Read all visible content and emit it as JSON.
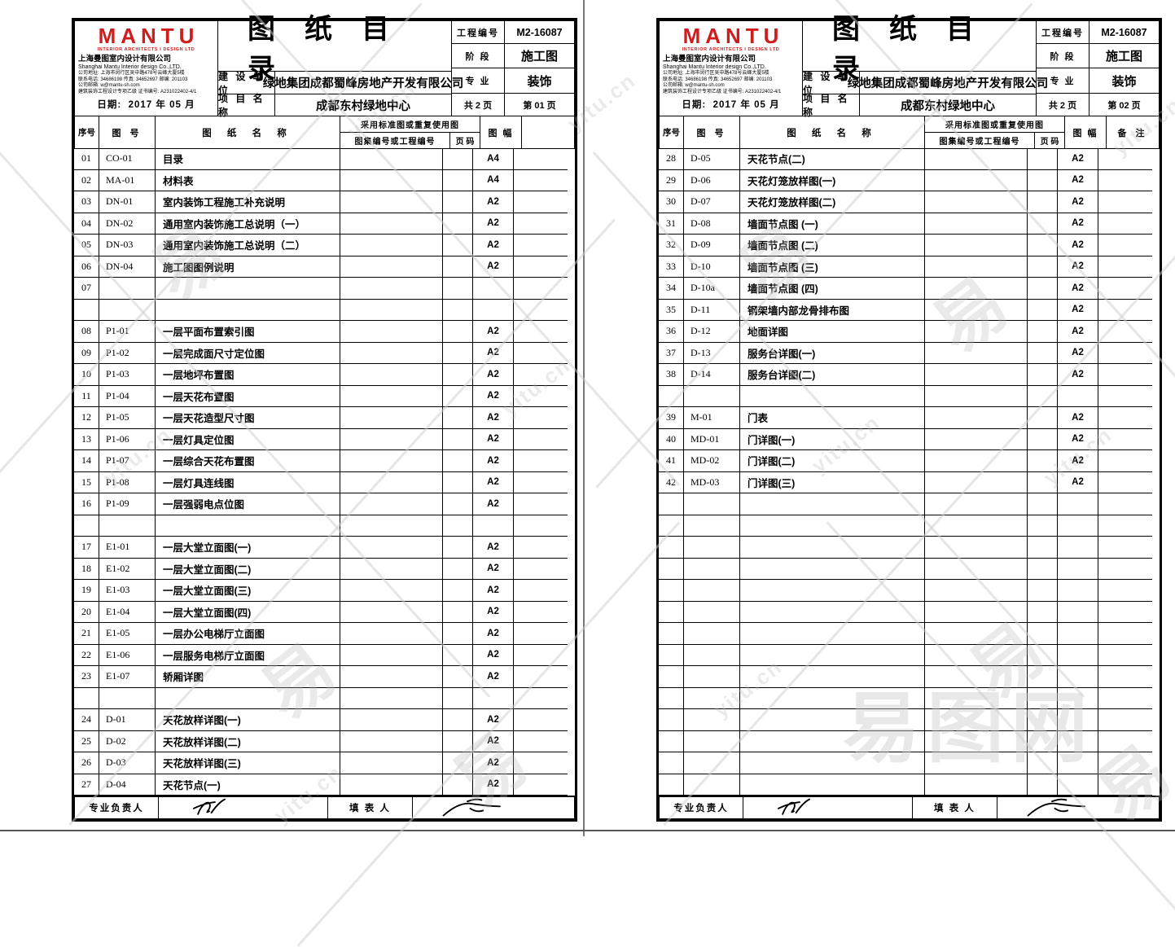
{
  "watermark": {
    "char": "易",
    "site": "yitu.cn",
    "big": "易图网"
  },
  "pages": [
    {
      "header": {
        "logo_title": "MANTU",
        "logo_subtitle": "INTERIOR ARCHITECTS I DESIGN LTD",
        "company_cn": "上海曼图室内设计有限公司",
        "company_en": "Shanghai Mantu Interior design Co.,LTD.",
        "address": "公司地址: 上海市闵行区吴中路478号云峰大厦5楼",
        "contact": "联系电话: 34686198  传真: 34652697  邮编: 201103",
        "email": "公司邮箱: w@mantu-sh.com",
        "cert": "建筑装饰工程设计专项乙级  证书编号: A231022402-4/1",
        "date_label": "日期:",
        "date_value": "2017 年 05 月",
        "sheet_title": "图纸目录",
        "client_label": "建 设 单 位",
        "client": "绿地集团成都蜀峰房地产开发有限公司",
        "project_label": "项 目 名 称",
        "project": "成都东村绿地中心",
        "job_no_label": "工程编号",
        "job_no": "M2-16087",
        "stage_label": "阶 段",
        "stage": "施工图",
        "discipline_label": "专 业",
        "discipline": "装饰",
        "pages_total": "共 2 页",
        "page_no": "第 01 页"
      },
      "table": {
        "col_seq": "序号",
        "col_no": "图 号",
        "col_name": "图 纸 名 称",
        "col_std": "采用标准图或重复使用图",
        "col_std_no": "图集编号或工程编号",
        "col_page": "页 码",
        "col_size": "图 幅",
        "col_remark": "备 注",
        "rows": [
          {
            "seq": "01",
            "no": "CO-01",
            "name": "目录",
            "size": "A4"
          },
          {
            "seq": "02",
            "no": "MA-01",
            "name": "材料表",
            "size": "A4"
          },
          {
            "seq": "03",
            "no": "DN-01",
            "name": "室内装饰工程施工补充说明",
            "size": "A2"
          },
          {
            "seq": "04",
            "no": "DN-02",
            "name": "通用室内装饰施工总说明（一）",
            "size": "A2"
          },
          {
            "seq": "05",
            "no": "DN-03",
            "name": "通用室内装饰施工总说明（二）",
            "size": "A2"
          },
          {
            "seq": "06",
            "no": "DN-04",
            "name": "施工图图例说明",
            "size": "A2"
          },
          {
            "seq": "07",
            "no": "",
            "name": "",
            "size": ""
          },
          {
            "seq": "",
            "no": "",
            "name": "",
            "size": ""
          },
          {
            "seq": "08",
            "no": "P1-01",
            "name": "一层平面布置索引图",
            "size": "A2"
          },
          {
            "seq": "09",
            "no": "P1-02",
            "name": "一层完成面尺寸定位图",
            "size": "A2"
          },
          {
            "seq": "10",
            "no": "P1-03",
            "name": "一层地坪布置图",
            "size": "A2"
          },
          {
            "seq": "11",
            "no": "P1-04",
            "name": "一层天花布置图",
            "size": "A2"
          },
          {
            "seq": "12",
            "no": "P1-05",
            "name": "一层天花造型尺寸图",
            "size": "A2"
          },
          {
            "seq": "13",
            "no": "P1-06",
            "name": "一层灯具定位图",
            "size": "A2"
          },
          {
            "seq": "14",
            "no": "P1-07",
            "name": "一层综合天花布置图",
            "size": "A2"
          },
          {
            "seq": "15",
            "no": "P1-08",
            "name": "一层灯具连线图",
            "size": "A2"
          },
          {
            "seq": "16",
            "no": "P1-09",
            "name": "一层强弱电点位图",
            "size": "A2"
          },
          {
            "seq": "",
            "no": "",
            "name": "",
            "size": ""
          },
          {
            "seq": "17",
            "no": "E1-01",
            "name": "一层大堂立面图(一)",
            "size": "A2"
          },
          {
            "seq": "18",
            "no": "E1-02",
            "name": "一层大堂立面图(二)",
            "size": "A2"
          },
          {
            "seq": "19",
            "no": "E1-03",
            "name": "一层大堂立面图(三)",
            "size": "A2"
          },
          {
            "seq": "20",
            "no": "E1-04",
            "name": "一层大堂立面图(四)",
            "size": "A2"
          },
          {
            "seq": "21",
            "no": "E1-05",
            "name": "一层办公电梯厅立面图",
            "size": "A2"
          },
          {
            "seq": "22",
            "no": "E1-06",
            "name": "一层服务电梯厅立面图",
            "size": "A2"
          },
          {
            "seq": "23",
            "no": "E1-07",
            "name": "轿厢详图",
            "size": "A2"
          },
          {
            "seq": "",
            "no": "",
            "name": "",
            "size": ""
          },
          {
            "seq": "24",
            "no": "D-01",
            "name": "天花放样详图(一)",
            "size": "A2"
          },
          {
            "seq": "25",
            "no": "D-02",
            "name": "天花放样详图(二)",
            "size": "A2"
          },
          {
            "seq": "26",
            "no": "D-03",
            "name": "天花放样详图(三)",
            "size": "A2"
          },
          {
            "seq": "27",
            "no": "D-04",
            "name": "天花节点(一)",
            "size": "A2"
          }
        ]
      },
      "footer": {
        "lead_label": "专业负责人",
        "fill_label": "填 表 人"
      }
    },
    {
      "header": {
        "logo_title": "MANTU",
        "logo_subtitle": "INTERIOR ARCHITECTS I DESIGN LTD",
        "company_cn": "上海曼图室内设计有限公司",
        "company_en": "Shanghai Mantu Interior design Co.,LTD.",
        "address": "公司地址: 上海市闵行区吴中路478号云峰大厦5楼",
        "contact": "联系电话: 34686198  传真: 34652697  邮编: 201103",
        "email": "公司邮箱: w@mantu-sh.com",
        "cert": "建筑装饰工程设计专项乙级  证书编号: A231022402-4/1",
        "date_label": "日期:",
        "date_value": "2017 年 05 月",
        "sheet_title": "图纸目录",
        "client_label": "建 设 单 位",
        "client": "绿地集团成都蜀峰房地产开发有限公司",
        "project_label": "项 目 名 称",
        "project": "成都东村绿地中心",
        "job_no_label": "工程编号",
        "job_no": "M2-16087",
        "stage_label": "阶 段",
        "stage": "施工图",
        "discipline_label": "专 业",
        "discipline": "装饰",
        "pages_total": "共 2 页",
        "page_no": "第 02 页"
      },
      "table": {
        "col_seq": "序号",
        "col_no": "图 号",
        "col_name": "图 纸 名 称",
        "col_std": "采用标准图或重复使用图",
        "col_std_no": "图集编号或工程编号",
        "col_page": "页 码",
        "col_size": "图 幅",
        "col_remark": "备 注",
        "rows": [
          {
            "seq": "28",
            "no": "D-05",
            "name": "天花节点(二)",
            "size": "A2"
          },
          {
            "seq": "29",
            "no": "D-06",
            "name": "天花灯笼放样图(一)",
            "size": "A2"
          },
          {
            "seq": "30",
            "no": "D-07",
            "name": "天花灯笼放样图(二)",
            "size": "A2"
          },
          {
            "seq": "31",
            "no": "D-08",
            "name": "墙面节点图 (一)",
            "size": "A2"
          },
          {
            "seq": "32",
            "no": "D-09",
            "name": "墙面节点图 (二)",
            "size": "A2"
          },
          {
            "seq": "33",
            "no": "D-10",
            "name": "墙面节点图 (三)",
            "size": "A2"
          },
          {
            "seq": "34",
            "no": "D-10a",
            "name": "墙面节点图 (四)",
            "size": "A2"
          },
          {
            "seq": "35",
            "no": "D-11",
            "name": "钢架墙内部龙骨排布图",
            "size": "A2"
          },
          {
            "seq": "36",
            "no": "D-12",
            "name": "地面详图",
            "size": "A2"
          },
          {
            "seq": "37",
            "no": "D-13",
            "name": "服务台详图(一)",
            "size": "A2"
          },
          {
            "seq": "38",
            "no": "D-14",
            "name": "服务台详图(二)",
            "size": "A2"
          },
          {
            "seq": "",
            "no": "",
            "name": "",
            "size": ""
          },
          {
            "seq": "39",
            "no": "M-01",
            "name": "门表",
            "size": "A2"
          },
          {
            "seq": "40",
            "no": "MD-01",
            "name": "门详图(一)",
            "size": "A2"
          },
          {
            "seq": "41",
            "no": "MD-02",
            "name": "门详图(二)",
            "size": "A2"
          },
          {
            "seq": "42",
            "no": "MD-03",
            "name": "门详图(三)",
            "size": "A2"
          },
          {
            "seq": "",
            "no": "",
            "name": "",
            "size": ""
          },
          {
            "seq": "",
            "no": "",
            "name": "",
            "size": ""
          },
          {
            "seq": "",
            "no": "",
            "name": "",
            "size": ""
          },
          {
            "seq": "",
            "no": "",
            "name": "",
            "size": ""
          },
          {
            "seq": "",
            "no": "",
            "name": "",
            "size": ""
          },
          {
            "seq": "",
            "no": "",
            "name": "",
            "size": ""
          },
          {
            "seq": "",
            "no": "",
            "name": "",
            "size": ""
          },
          {
            "seq": "",
            "no": "",
            "name": "",
            "size": ""
          },
          {
            "seq": "",
            "no": "",
            "name": "",
            "size": ""
          },
          {
            "seq": "",
            "no": "",
            "name": "",
            "size": ""
          },
          {
            "seq": "",
            "no": "",
            "name": "",
            "size": ""
          },
          {
            "seq": "",
            "no": "",
            "name": "",
            "size": ""
          },
          {
            "seq": "",
            "no": "",
            "name": "",
            "size": ""
          },
          {
            "seq": "",
            "no": "",
            "name": "",
            "size": ""
          }
        ]
      },
      "footer": {
        "lead_label": "专业负责人",
        "fill_label": "填 表 人"
      }
    }
  ]
}
